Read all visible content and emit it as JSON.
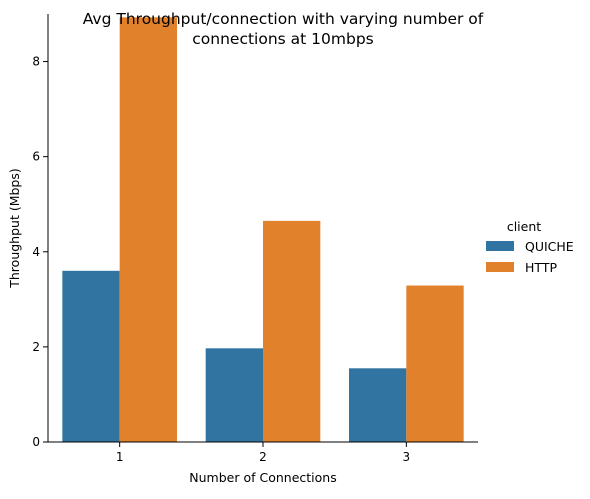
{
  "chart_data": {
    "type": "bar",
    "title_lines": [
      "Avg Throughput/connection with varying number of",
      "connections at 10mbps"
    ],
    "xlabel": "Number of Connections",
    "ylabel": "Throughput (Mbps)",
    "categories": [
      "1",
      "2",
      "3"
    ],
    "ylim": [
      0,
      9.0
    ],
    "yticks": [
      "0",
      "2",
      "4",
      "6",
      "8"
    ],
    "grid": false,
    "legend_title": "client",
    "legend_position": "right",
    "series": [
      {
        "name": "QUICHE",
        "color": "#3274a1",
        "values": [
          3.6,
          1.97,
          1.55
        ]
      },
      {
        "name": "HTTP",
        "color": "#e1812c",
        "values": [
          8.93,
          4.65,
          3.29
        ]
      }
    ]
  }
}
